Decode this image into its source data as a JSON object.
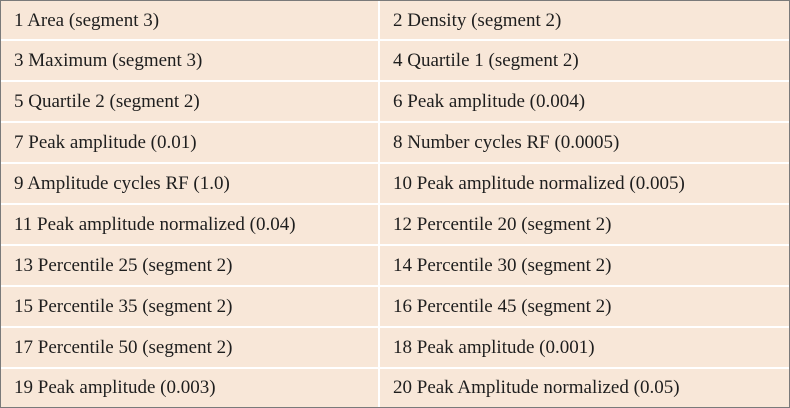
{
  "table": {
    "background": "#f8e7d8",
    "border_color": "#7a7a7a",
    "rows": [
      [
        "1 Area (segment 3)",
        "2 Density (segment 2)"
      ],
      [
        "3 Maximum (segment 3)",
        "4 Quartile 1 (segment 2)"
      ],
      [
        "5 Quartile 2 (segment 2)",
        "6 Peak amplitude (0.004)"
      ],
      [
        "7 Peak amplitude (0.01)",
        "8 Number cycles RF (0.0005)"
      ],
      [
        "9 Amplitude cycles RF (1.0)",
        "10 Peak amplitude normalized (0.005)"
      ],
      [
        "11 Peak amplitude normalized (0.04)",
        "12 Percentile 20 (segment 2)"
      ],
      [
        "13 Percentile 25 (segment 2)",
        "14 Percentile 30 (segment 2)"
      ],
      [
        "15 Percentile 35 (segment 2)",
        "16 Percentile 45 (segment 2)"
      ],
      [
        "17 Percentile 50 (segment 2)",
        "18 Peak amplitude (0.001)"
      ],
      [
        "19 Peak amplitude (0.003)",
        "20 Peak Amplitude normalized (0.05)"
      ]
    ]
  }
}
